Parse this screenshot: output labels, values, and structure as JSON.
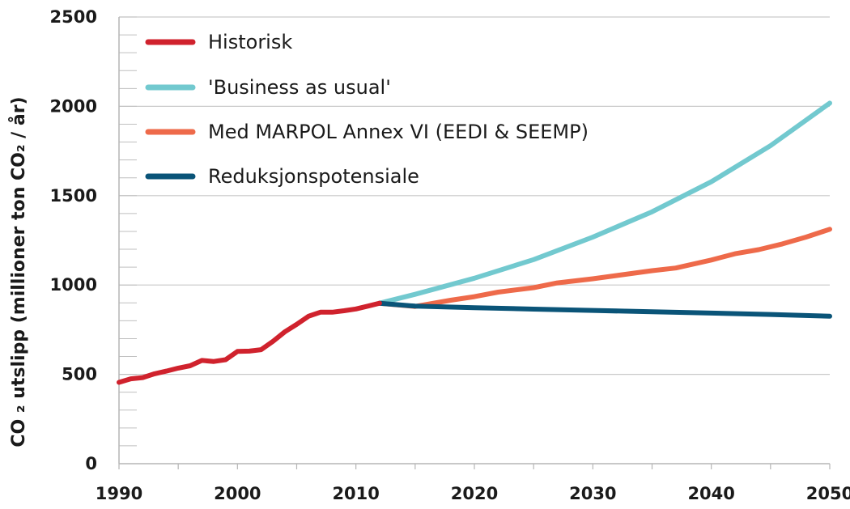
{
  "chart_data": {
    "type": "line",
    "xlabel": "",
    "ylabel": "CO ₂ utslipp (millioner ton CO₂ / år)",
    "xlim": [
      1990,
      2050
    ],
    "ylim": [
      0,
      2500
    ],
    "x_ticks": [
      "1990",
      "2000",
      "2010",
      "2020",
      "2030",
      "2040",
      "2050"
    ],
    "y_ticks": [
      "0",
      "500",
      "1000",
      "1500",
      "2000",
      "2500"
    ],
    "grid": true,
    "legend_position": "top-left",
    "series": [
      {
        "name": "Historisk",
        "color": "#d0222d",
        "points": [
          [
            1990,
            455
          ],
          [
            1991,
            475
          ],
          [
            1992,
            482
          ],
          [
            1993,
            503
          ],
          [
            1994,
            518
          ],
          [
            1995,
            535
          ],
          [
            1996,
            548
          ],
          [
            1997,
            578
          ],
          [
            1998,
            572
          ],
          [
            1999,
            582
          ],
          [
            2000,
            628
          ],
          [
            2001,
            630
          ],
          [
            2002,
            638
          ],
          [
            2003,
            685
          ],
          [
            2004,
            738
          ],
          [
            2005,
            780
          ],
          [
            2006,
            825
          ],
          [
            2007,
            848
          ],
          [
            2008,
            848
          ],
          [
            2009,
            856
          ],
          [
            2010,
            866
          ],
          [
            2011,
            882
          ],
          [
            2012,
            898
          ]
        ]
      },
      {
        "name": "'Business as usual'",
        "color": "#72c9cf",
        "points": [
          [
            2012,
            898
          ],
          [
            2015,
            948
          ],
          [
            2020,
            1038
          ],
          [
            2025,
            1142
          ],
          [
            2030,
            1268
          ],
          [
            2035,
            1410
          ],
          [
            2040,
            1578
          ],
          [
            2045,
            1780
          ],
          [
            2050,
            2018
          ]
        ]
      },
      {
        "name": "Med MARPOL Annex VI (EEDI & SEEMP)",
        "color": "#ee6a4a",
        "points": [
          [
            2012,
            898
          ],
          [
            2015,
            880
          ],
          [
            2018,
            915
          ],
          [
            2020,
            935
          ],
          [
            2022,
            960
          ],
          [
            2025,
            985
          ],
          [
            2027,
            1012
          ],
          [
            2030,
            1035
          ],
          [
            2035,
            1080
          ],
          [
            2037,
            1095
          ],
          [
            2040,
            1140
          ],
          [
            2042,
            1175
          ],
          [
            2044,
            1198
          ],
          [
            2046,
            1230
          ],
          [
            2048,
            1268
          ],
          [
            2050,
            1312
          ]
        ]
      },
      {
        "name": "Reduksjonspotensiale",
        "color": "#0a5478",
        "points": [
          [
            2012,
            898
          ],
          [
            2015,
            882
          ],
          [
            2020,
            873
          ],
          [
            2025,
            865
          ],
          [
            2030,
            858
          ],
          [
            2035,
            850
          ],
          [
            2040,
            843
          ],
          [
            2045,
            835
          ],
          [
            2050,
            825
          ]
        ]
      }
    ]
  }
}
